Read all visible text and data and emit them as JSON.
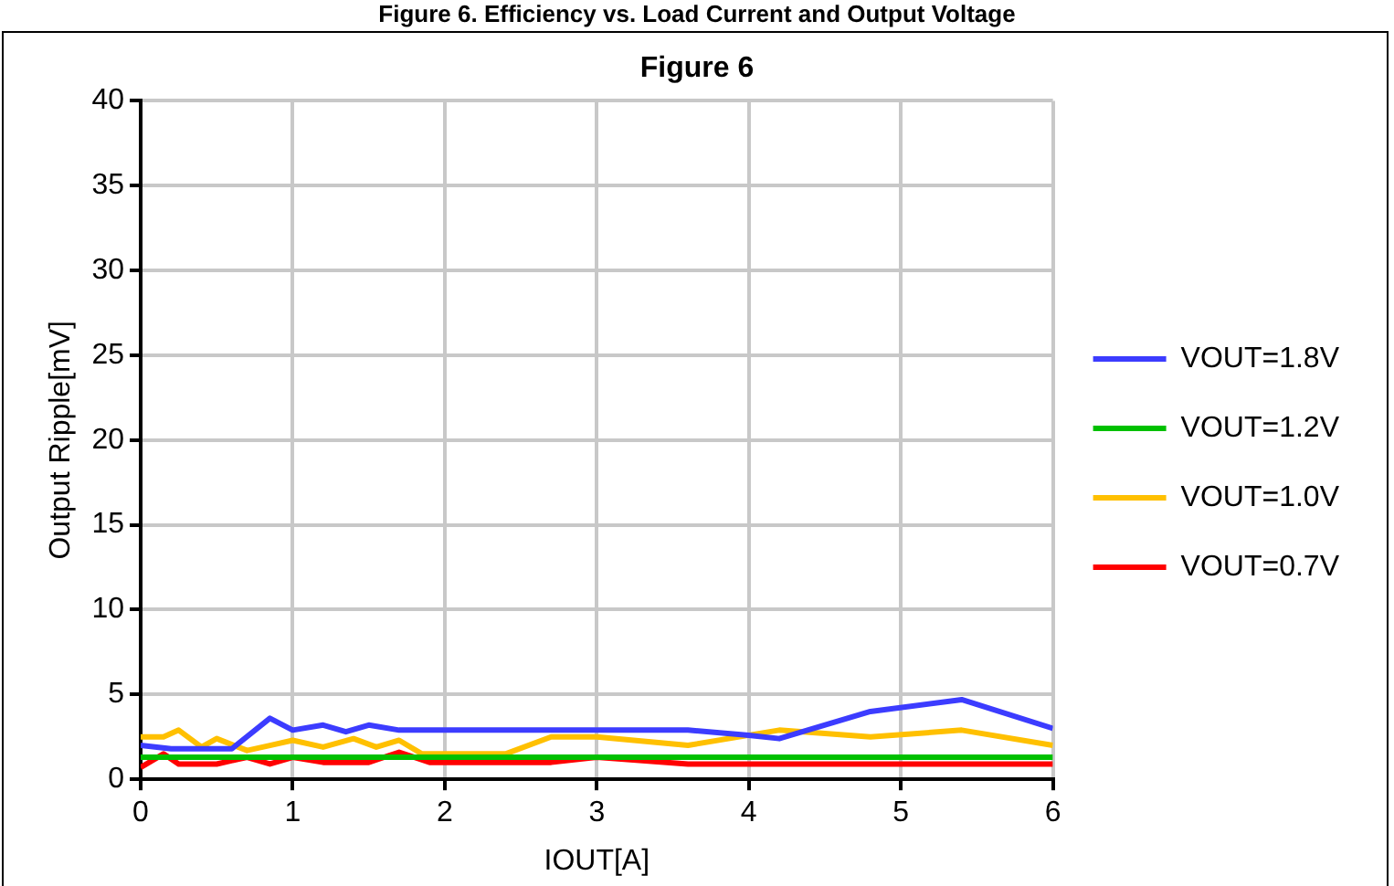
{
  "chart_data": {
    "type": "line",
    "title": "Figure 6",
    "annotations": [
      "Figure 6. Efficiency vs. Load Current and Output Voltage"
    ],
    "xlabel": "IOUT[A]",
    "ylabel": "Output Ripple[mV]",
    "xlim": [
      0,
      6
    ],
    "xticks": [
      0,
      1,
      2,
      3,
      4,
      5,
      6
    ],
    "ylim": [
      0,
      40
    ],
    "yticks": [
      0,
      5,
      10,
      15,
      20,
      25,
      30,
      35,
      40
    ],
    "grid": true,
    "legend": "right",
    "marker": "none",
    "line_style": "solid",
    "series": [
      {
        "name": "VOUT=1.8V",
        "color": "#3c3cff",
        "x": [
          0,
          0.2,
          0.4,
          0.6,
          0.85,
          1.0,
          1.2,
          1.35,
          1.5,
          1.7,
          2,
          3,
          3.6,
          4,
          4.2,
          4.8,
          5.4,
          6
        ],
        "values": [
          2.0,
          1.8,
          1.8,
          1.8,
          3.6,
          2.9,
          3.2,
          2.8,
          3.2,
          2.9,
          2.9,
          2.9,
          2.9,
          2.6,
          2.4,
          4.0,
          4.7,
          3.0
        ]
      },
      {
        "name": "VOUT=1.2V",
        "color": "#00c000",
        "x": [
          0,
          1,
          2,
          3,
          4,
          5,
          6
        ],
        "values": [
          1.3,
          1.3,
          1.3,
          1.3,
          1.3,
          1.3,
          1.3
        ]
      },
      {
        "name": "VOUT=1.0V",
        "color": "#ffc000",
        "x": [
          0,
          0.15,
          0.25,
          0.4,
          0.5,
          0.7,
          0.85,
          1.0,
          1.2,
          1.4,
          1.55,
          1.7,
          1.85,
          2.4,
          2.7,
          3,
          3.6,
          4.2,
          4.8,
          5.4,
          6
        ],
        "values": [
          2.5,
          2.5,
          2.9,
          1.9,
          2.4,
          1.7,
          2.0,
          2.3,
          1.9,
          2.4,
          1.9,
          2.3,
          1.5,
          1.5,
          2.5,
          2.5,
          2.0,
          2.9,
          2.5,
          2.9,
          2.0
        ]
      },
      {
        "name": "VOUT=0.7V",
        "color": "#ff0000",
        "x": [
          0,
          0.15,
          0.25,
          0.5,
          0.7,
          0.85,
          1.0,
          1.2,
          1.5,
          1.7,
          1.9,
          2.7,
          3,
          3.6,
          6
        ],
        "values": [
          0.7,
          1.5,
          0.9,
          0.9,
          1.3,
          0.9,
          1.3,
          1.0,
          1.0,
          1.6,
          1.0,
          1.0,
          1.3,
          0.9,
          0.9
        ]
      }
    ]
  }
}
